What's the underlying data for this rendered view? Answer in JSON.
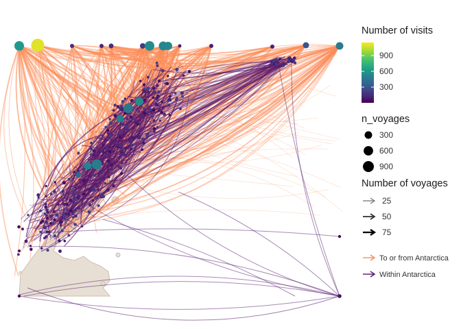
{
  "chart_data": {
    "type": "network-map",
    "title": "",
    "xlabel": "",
    "ylabel": "",
    "grid": false,
    "legend_placement": "right",
    "nodes_color_legend": {
      "title": "Number of visits",
      "ticks": [
        300,
        600,
        900
      ],
      "range": [
        0,
        1150
      ],
      "colormap": "viridis"
    },
    "nodes_size_legend": {
      "title": "n_voyages",
      "values": [
        300,
        600,
        900
      ]
    },
    "edge_width_legend": {
      "title": "Number of voyages",
      "values": [
        25,
        50,
        75
      ]
    },
    "edge_color_legend": {
      "entries": [
        {
          "name": "To or from Antarctica",
          "color": "#FC8D59"
        },
        {
          "name": "Within Antarctica",
          "color": "#54166E"
        }
      ]
    },
    "edge_colors": {
      "to_from": "#FC8D59",
      "within": "#54166E"
    },
    "land_color": "#E8DFD4",
    "land_stroke": "#CDBFAE"
  }
}
